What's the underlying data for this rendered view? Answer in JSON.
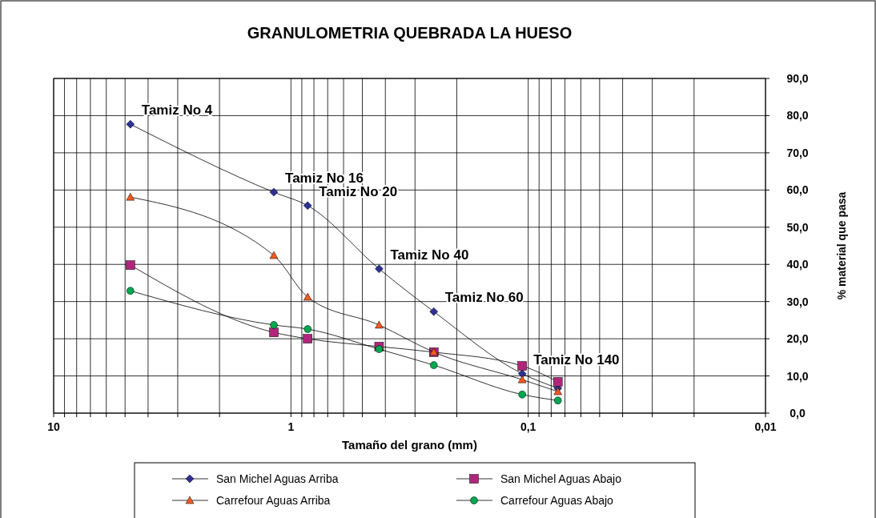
{
  "chart_data": {
    "type": "line",
    "title": "GRANULOMETRIA QUEBRADA LA HUESO",
    "xlabel": "Tamaño del grano (mm)",
    "ylabel": "% material que pasa",
    "log": "x",
    "xlim": [
      10,
      0.01
    ],
    "xticks": [
      {
        "value": 10,
        "label": "10"
      },
      {
        "value": 9,
        "label": null
      },
      {
        "value": 8,
        "label": null
      },
      {
        "value": 7,
        "label": null
      },
      {
        "value": 6,
        "label": null
      },
      {
        "value": 5,
        "label": null
      },
      {
        "value": 4,
        "label": null
      },
      {
        "value": 3,
        "label": null
      },
      {
        "value": 2,
        "label": null
      },
      {
        "value": 1,
        "label": "1"
      },
      {
        "value": 0.9,
        "label": null
      },
      {
        "value": 0.8,
        "label": null
      },
      {
        "value": 0.7,
        "label": null
      },
      {
        "value": 0.6,
        "label": null
      },
      {
        "value": 0.5,
        "label": null
      },
      {
        "value": 0.4,
        "label": null
      },
      {
        "value": 0.3,
        "label": null
      },
      {
        "value": 0.2,
        "label": null
      },
      {
        "value": 0.1,
        "label": "0,1"
      },
      {
        "value": 0.09,
        "label": null
      },
      {
        "value": 0.08,
        "label": null
      },
      {
        "value": 0.07,
        "label": null
      },
      {
        "value": 0.06,
        "label": null
      },
      {
        "value": 0.05,
        "label": null
      },
      {
        "value": 0.04,
        "label": null
      },
      {
        "value": 0.03,
        "label": null
      },
      {
        "value": 0.02,
        "label": null
      },
      {
        "value": 0.01,
        "label": "0,01"
      }
    ],
    "ylim": [
      0,
      90
    ],
    "yticks": [
      {
        "value": 0,
        "label": "0,0"
      },
      {
        "value": 10,
        "label": "10,0"
      },
      {
        "value": 20,
        "label": "20,0"
      },
      {
        "value": 30,
        "label": "30,0"
      },
      {
        "value": 40,
        "label": "40,0"
      },
      {
        "value": 50,
        "label": "50,0"
      },
      {
        "value": 60,
        "label": "60,0"
      },
      {
        "value": 70,
        "label": "70,0"
      },
      {
        "value": 80,
        "label": "80,0"
      },
      {
        "value": 90,
        "label": "90,0"
      }
    ],
    "grid": true,
    "legend": "bottom",
    "x": [
      4.75,
      1.18,
      0.85,
      0.425,
      0.25,
      0.106,
      0.075
    ],
    "series": [
      {
        "name": "San Michel Aguas Arriba",
        "color": "#2e3192",
        "marker": "diamond",
        "values": [
          77.7,
          59.4,
          55.8,
          38.8,
          27.3,
          10.6,
          6.7
        ]
      },
      {
        "name": "San Michel Aguas Abajo",
        "color": "#b0267c",
        "marker": "square",
        "values": [
          39.8,
          21.7,
          20.0,
          17.9,
          16.4,
          12.7,
          8.4
        ]
      },
      {
        "name": "Carrefour Aguas Arriba",
        "color": "#f15a22",
        "marker": "triangle",
        "values": [
          58.1,
          42.4,
          31.2,
          23.7,
          16.4,
          9.0,
          5.8
        ]
      },
      {
        "name": "Carrefour Aguas Abajo",
        "color": "#00a651",
        "marker": "circle",
        "values": [
          32.9,
          23.7,
          22.6,
          17.2,
          12.9,
          5.0,
          3.4
        ]
      }
    ],
    "annotations": [
      {
        "text": "Tamiz No 4",
        "x": 4.75,
        "y": 77.7
      },
      {
        "text": "Tamiz No 16",
        "x": 1.18,
        "y": 59.4
      },
      {
        "text": "Tamiz No 20",
        "x": 0.85,
        "y": 55.8
      },
      {
        "text": "Tamiz No 40",
        "x": 0.425,
        "y": 38.8
      },
      {
        "text": "Tamiz No 60",
        "x": 0.25,
        "y": 27.3
      },
      {
        "text": "Tamiz No 140",
        "x": 0.106,
        "y": 10.6
      }
    ]
  }
}
